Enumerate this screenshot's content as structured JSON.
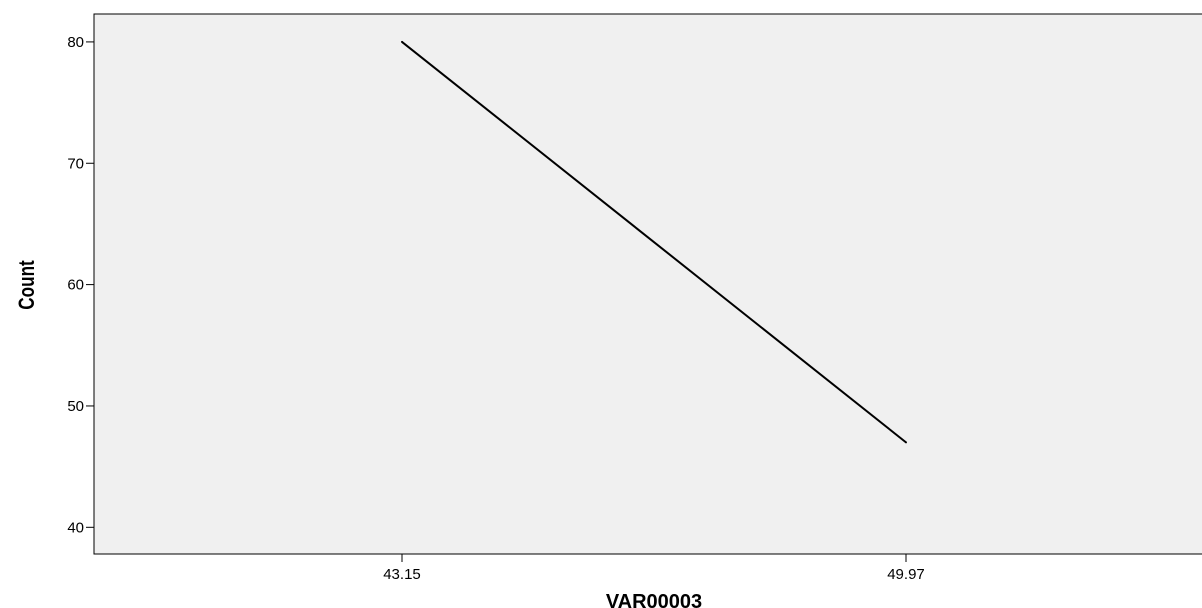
{
  "chart_data": {
    "type": "line",
    "title": "",
    "xlabel": "VAR00003",
    "ylabel": "Count",
    "categories": [
      "43.15",
      "49.97"
    ],
    "series": [
      {
        "values": [
          80,
          47
        ]
      }
    ],
    "yticks": [
      "40",
      "50",
      "60",
      "70",
      "80"
    ],
    "ylim": [
      37.8,
      82.3
    ],
    "grid": false,
    "legend": "none",
    "colors": {
      "plot_background": "#f0f0f0",
      "line": "#000000",
      "axis": "#000000"
    }
  }
}
